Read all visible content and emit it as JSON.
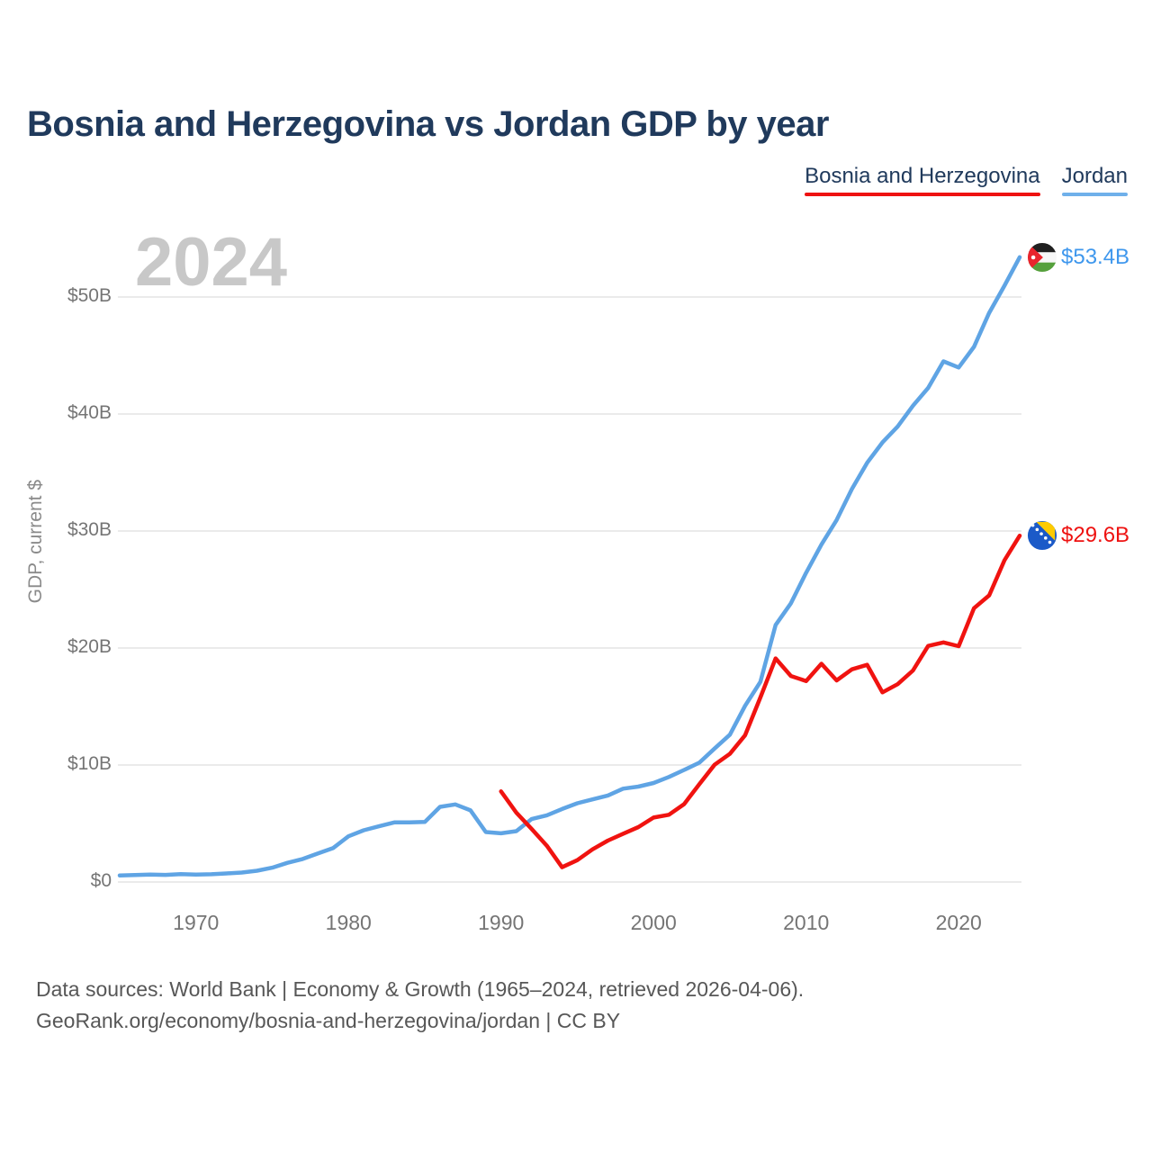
{
  "header": {
    "title": "Bosnia and Herzegovina vs Jordan GDP by year"
  },
  "legend": {
    "items": [
      {
        "label": "Bosnia and Herzegovina",
        "color": "#ee1211"
      },
      {
        "label": "Jordan",
        "color": "#6fb0ea"
      }
    ]
  },
  "watermark": {
    "year": "2024"
  },
  "chart_data": {
    "type": "line",
    "title": "Bosnia and Herzegovina vs Jordan GDP by year",
    "xlabel": "",
    "ylabel": "GDP, current $",
    "xlim": [
      1965,
      2024
    ],
    "ylim_billions": [
      0,
      50
    ],
    "grid": "horizontal",
    "legend_position": "top-right",
    "x_ticks": [
      1970,
      1980,
      1990,
      2000,
      2010,
      2020
    ],
    "y_ticks": [
      {
        "value": 0,
        "label": "$0"
      },
      {
        "value": 10,
        "label": "$10B"
      },
      {
        "value": 20,
        "label": "$20B"
      },
      {
        "value": 30,
        "label": "$30B"
      },
      {
        "value": 40,
        "label": "$40B"
      },
      {
        "value": 50,
        "label": "$50B"
      }
    ],
    "series": [
      {
        "name": "Jordan",
        "flag": "jordan",
        "color": "#5fa4e4",
        "label_color": "#3e97ed",
        "start_year": 1965,
        "end_year": 2024,
        "end_label": "$53.4B",
        "values_billions": [
          0.56,
          0.59,
          0.63,
          0.61,
          0.67,
          0.64,
          0.66,
          0.73,
          0.81,
          0.96,
          1.22,
          1.64,
          1.97,
          2.44,
          2.91,
          3.91,
          4.42,
          4.76,
          5.09,
          5.09,
          5.13,
          6.42,
          6.63,
          6.12,
          4.27,
          4.16,
          4.35,
          5.38,
          5.7,
          6.24,
          6.73,
          7.06,
          7.39,
          7.98,
          8.15,
          8.46,
          8.98,
          9.58,
          10.2,
          11.41,
          12.59,
          15.06,
          17.11,
          21.97,
          23.82,
          26.43,
          28.84,
          30.94,
          33.59,
          35.83,
          37.57,
          38.93,
          40.71,
          42.23,
          44.5,
          43.98,
          45.74,
          48.65,
          50.97,
          53.4
        ]
      },
      {
        "name": "Bosnia and Herzegovina",
        "flag": "bosnia",
        "color": "#f01310",
        "label_color": "#ee1211",
        "start_year": 1990,
        "end_year": 2024,
        "end_label": "$29.6B",
        "values_billions": [
          7.75,
          5.93,
          4.55,
          3.1,
          1.26,
          1.87,
          2.79,
          3.54,
          4.12,
          4.69,
          5.51,
          5.75,
          6.65,
          8.37,
          10.02,
          10.95,
          12.55,
          15.78,
          19.11,
          17.61,
          17.18,
          18.65,
          17.23,
          18.18,
          18.56,
          16.21,
          16.91,
          18.08,
          20.18,
          20.48,
          20.15,
          23.4,
          24.5,
          27.5,
          29.6
        ]
      }
    ]
  },
  "icons": {
    "jordan_flag": "jordan-flag-icon",
    "bosnia_flag": "bosnia-and-herzegovina-flag-icon"
  },
  "colors": {
    "title_text": "#203a5c",
    "axis_text": "#757575",
    "gridline": "#ebebeb",
    "watermark": "#c8c8c8",
    "footer_text": "#575757"
  },
  "footer": {
    "line1": "Data sources: World Bank | Economy & Growth (1965–2024, retrieved 2026-04-06).",
    "line2": "GeoRank.org/economy/bosnia-and-herzegovina/jordan | CC BY"
  }
}
